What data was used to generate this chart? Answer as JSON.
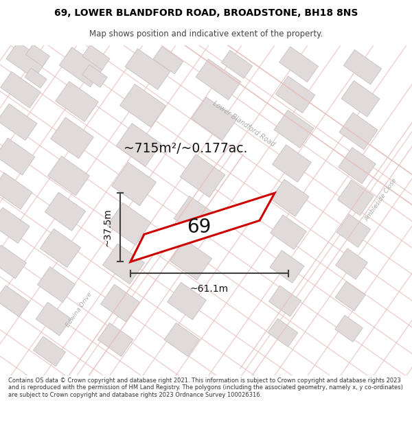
{
  "title_line1": "69, LOWER BLANDFORD ROAD, BROADSTONE, BH18 8NS",
  "title_line2": "Map shows position and indicative extent of the property.",
  "footer_text": "Contains OS data © Crown copyright and database right 2021. This information is subject to Crown copyright and database rights 2023 and is reproduced with the permission of HM Land Registry. The polygons (including the associated geometry, namely x, y co-ordinates) are subject to Crown copyright and database rights 2023 Ordnance Survey 100026316.",
  "area_label": "~715m²/~0.177ac.",
  "width_label": "~61.1m",
  "height_label": "~37.5m",
  "plot_number": "69",
  "map_bg": "#f7f4f4",
  "road_color": "#e8c0c0",
  "road_color2": "#f0d0d0",
  "building_color": "#e0dada",
  "building_edge": "#c8c0c0",
  "plot_color": "#cc0000",
  "street_label_color": "#aaaaaa",
  "dim_color": "#404040",
  "title_color": "#000000",
  "footer_color": "#333333",
  "title_fontsize": 10,
  "subtitle_fontsize": 8.5,
  "footer_fontsize": 6.0
}
